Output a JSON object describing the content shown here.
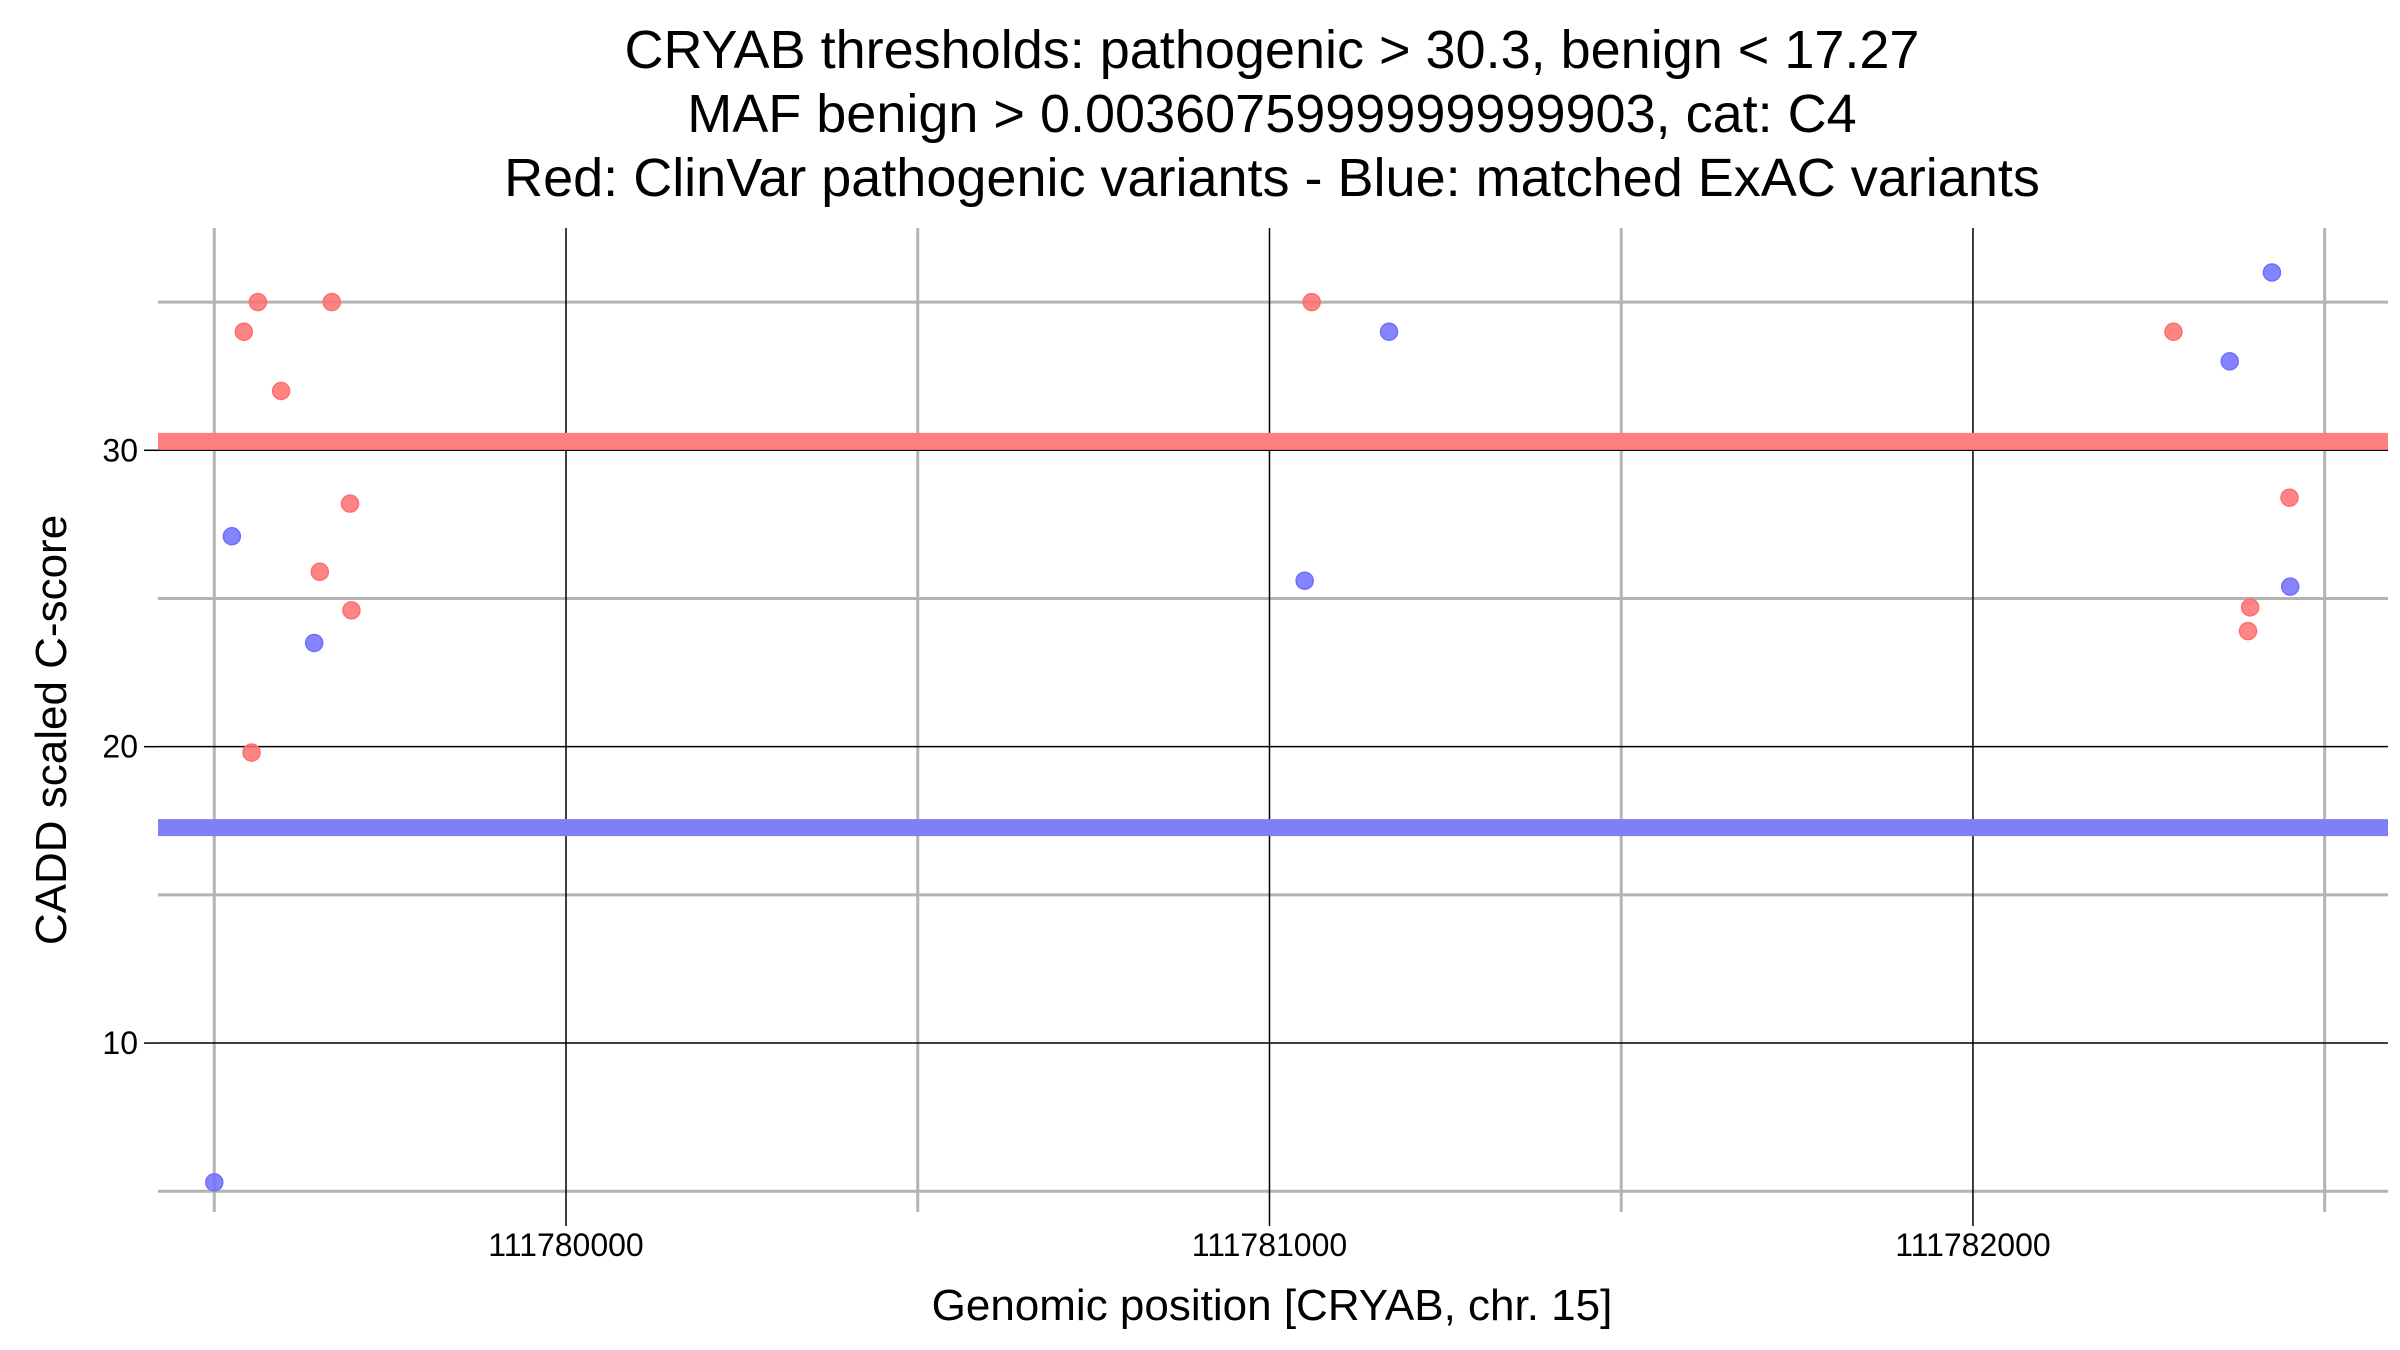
{
  "chart_data": {
    "type": "scatter",
    "title_lines": [
      "CRYAB thresholds: pathogenic > 30.3, benign < 17.27",
      "MAF benign > 0.0036075999999999903, cat: C4",
      "Red: ClinVar pathogenic variants - Blue: matched ExAC variants"
    ],
    "xlabel": "Genomic position [CRYAB, chr. 15]",
    "ylabel": "CADD scaled C-score",
    "xlim": [
      111779420,
      111782590
    ],
    "ylim": [
      4.3,
      37.5
    ],
    "x_ticks": [
      111780000,
      111781000,
      111782000
    ],
    "x_tick_labels": [
      "111780000",
      "111781000",
      "111782000"
    ],
    "y_ticks": [
      10,
      20,
      30
    ],
    "y_tick_labels": [
      "10",
      "20",
      "30"
    ],
    "x_minor_grid": [
      111779500,
      111780500,
      111781500,
      111782500
    ],
    "y_minor_grid": [
      5,
      15,
      25,
      35
    ],
    "grid": true,
    "thresholds": [
      {
        "value": 30.3,
        "color": "#ff7f7f"
      },
      {
        "value": 17.27,
        "color": "#7f7ff7"
      }
    ],
    "series": [
      {
        "color": "#ff6e6e",
        "points": [
          {
            "x": 111779562,
            "y": 35.0
          },
          {
            "x": 111779542,
            "y": 34.0
          },
          {
            "x": 111779595,
            "y": 32.0
          },
          {
            "x": 111779667,
            "y": 35.0
          },
          {
            "x": 111779693,
            "y": 28.2
          },
          {
            "x": 111779650,
            "y": 25.9
          },
          {
            "x": 111779695,
            "y": 24.6
          },
          {
            "x": 111779553,
            "y": 19.8
          },
          {
            "x": 111781060,
            "y": 35.0
          },
          {
            "x": 111782285,
            "y": 34.0
          },
          {
            "x": 111782394,
            "y": 24.7
          },
          {
            "x": 111782391,
            "y": 23.9
          },
          {
            "x": 111782450,
            "y": 28.4
          }
        ]
      },
      {
        "color": "#6e6eff",
        "points": [
          {
            "x": 111779525,
            "y": 27.1
          },
          {
            "x": 111779642,
            "y": 23.5
          },
          {
            "x": 111779500,
            "y": 5.3
          },
          {
            "x": 111781050,
            "y": 25.6
          },
          {
            "x": 111781170,
            "y": 34.0
          },
          {
            "x": 111782365,
            "y": 33.0
          },
          {
            "x": 111782425,
            "y": 36.0
          },
          {
            "x": 111782451,
            "y": 25.4
          }
        ]
      }
    ]
  }
}
